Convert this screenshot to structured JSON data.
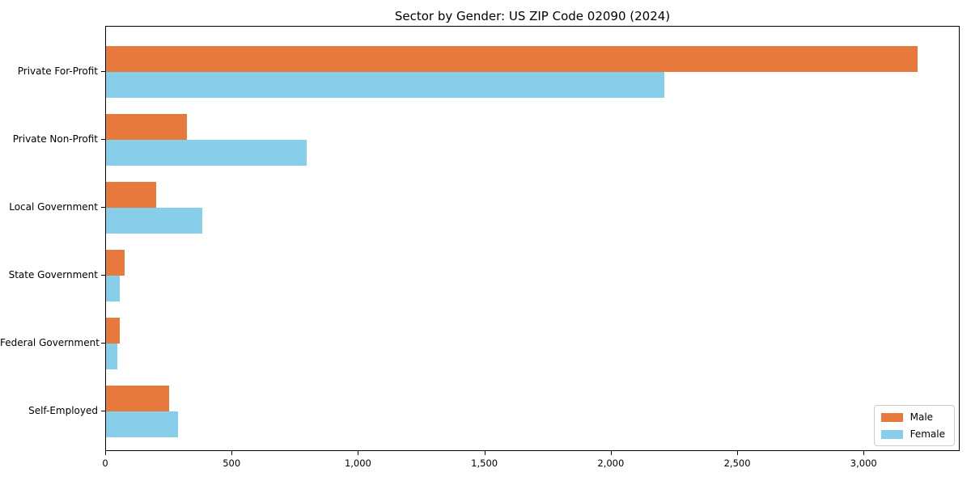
{
  "title": "Sector by Gender: US ZIP Code 02090 (2024)",
  "chart_data": {
    "type": "bar",
    "orientation": "horizontal",
    "title": "Sector by Gender: US ZIP Code 02090 (2024)",
    "categories": [
      "Private For-Profit",
      "Private Non-Profit",
      "Local Government",
      "State Government",
      "Federal Government",
      "Self-Employed"
    ],
    "series": [
      {
        "name": "Male",
        "color": "#e8793c",
        "values": [
          3210,
          320,
          200,
          75,
          55,
          250
        ]
      },
      {
        "name": "Female",
        "color": "#87ceeb",
        "values": [
          2210,
          795,
          380,
          55,
          45,
          285
        ]
      }
    ],
    "xlabel": "",
    "ylabel": "",
    "xlim": [
      0,
      3380
    ],
    "xticks": [
      0,
      500,
      1000,
      1500,
      2000,
      2500,
      3000
    ],
    "xtick_labels": [
      "0",
      "500",
      "1,000",
      "1,500",
      "2,000",
      "2,500",
      "3,000"
    ],
    "grid": false,
    "legend_position": "lower right"
  }
}
